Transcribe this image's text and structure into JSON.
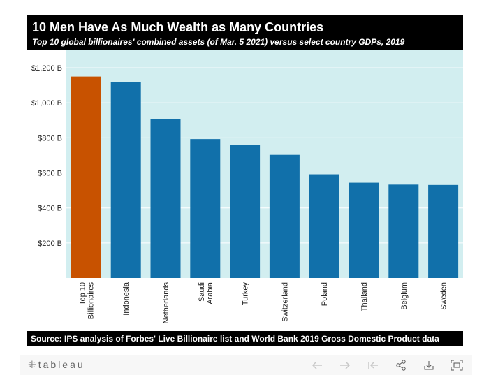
{
  "header": {
    "title": "10 Men Have As Much Wealth as Many Countries",
    "subtitle": "Top 10 global billionaires' combined assets (of Mar. 5 2021) versus select country GDPs, 2019"
  },
  "source": "Source: IPS analysis of Forbes' Live Billionaire list and World Bank 2019 Gross Domestic Product data",
  "toolbar": {
    "logo_text": "tableau",
    "icons": [
      "undo-icon",
      "redo-icon",
      "revert-icon",
      "share-icon",
      "download-icon",
      "fullscreen-icon"
    ]
  },
  "chart_data": {
    "type": "bar",
    "categories": [
      [
        "Top 10",
        "Billionaires"
      ],
      [
        "Indonesia"
      ],
      [
        "Netherlands"
      ],
      [
        "Saudi",
        "Arabia"
      ],
      [
        "Turkey"
      ],
      [
        "Switzerland"
      ],
      [
        "Poland"
      ],
      [
        "Thailand"
      ],
      [
        "Belgium"
      ],
      [
        "Sweden"
      ]
    ],
    "values": [
      1150,
      1119,
      907,
      793,
      761,
      703,
      592,
      544,
      533,
      531
    ],
    "ylim": [
      0,
      1300
    ],
    "yticks": [
      200,
      400,
      600,
      800,
      1000,
      1200
    ],
    "ytick_labels": [
      "$200 B",
      "$400 B",
      "$600 B",
      "$800 B",
      "$1,000 B",
      "$1,200 B"
    ],
    "grid": true,
    "colors": {
      "highlight": "#c85200",
      "bar": "#1170aa",
      "plot_bg": "#d2eef0",
      "grid": "#ffffff"
    }
  }
}
